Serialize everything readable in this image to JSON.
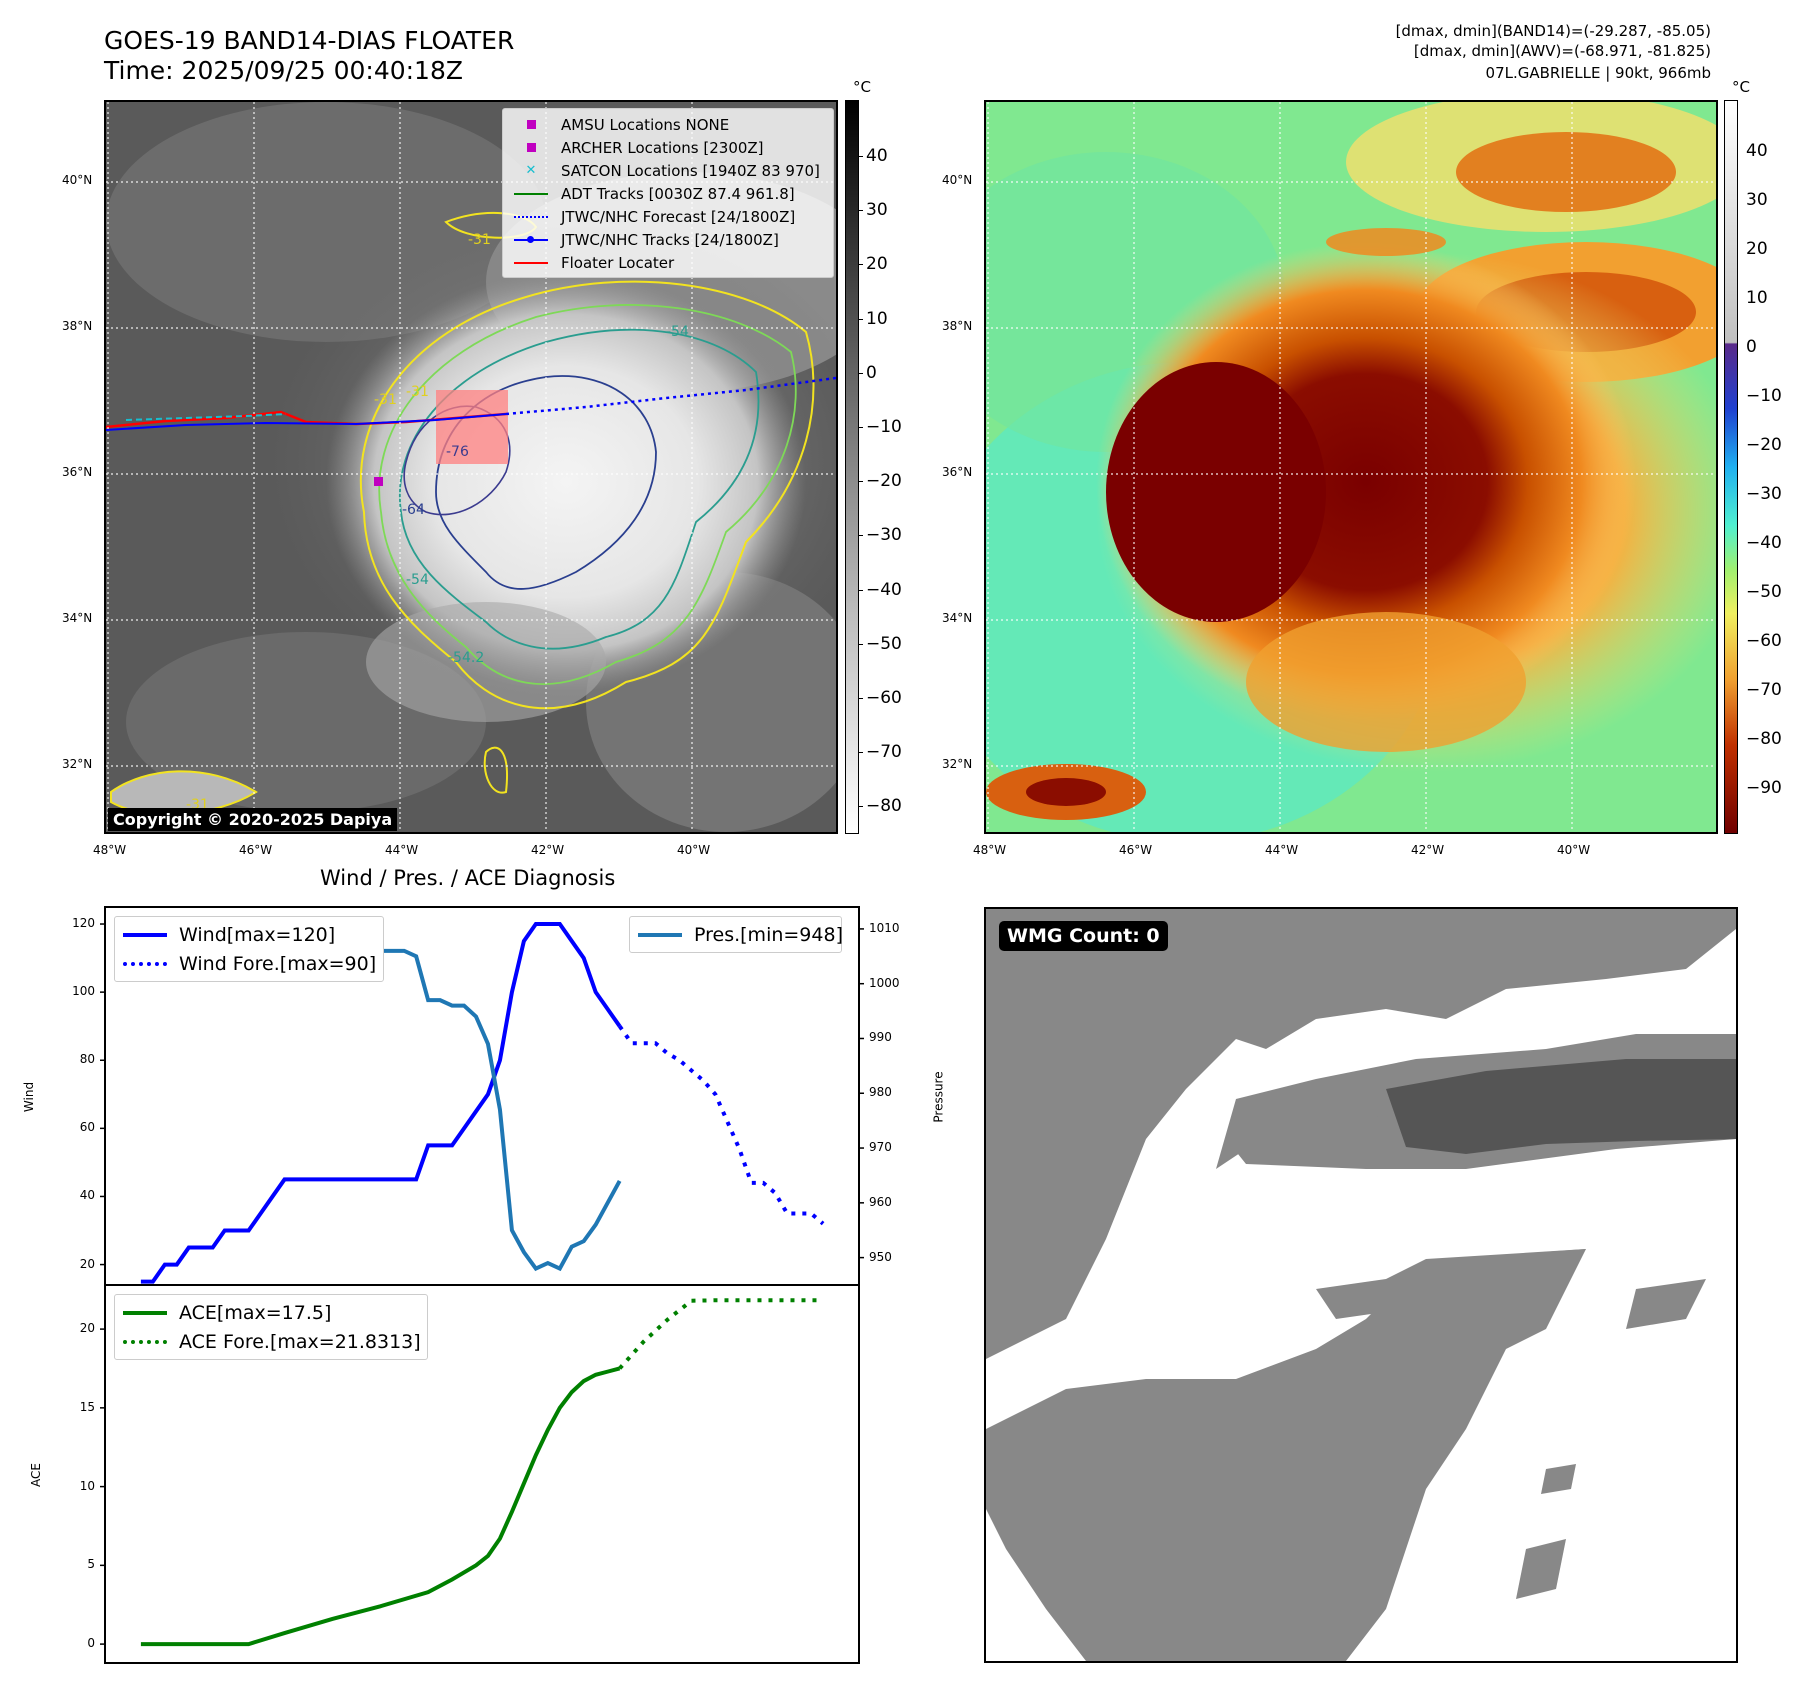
{
  "header": {
    "title_line1": "GOES-19 BAND14-DIAS FLOATER",
    "title_line2": "Time: 2025/09/25 00:40:18Z",
    "info_line1": "[dmax, dmin](BAND14)=(-29.287, -85.05)",
    "info_line2": "[dmax, dmin](AWV)=(-68.971, -81.825)",
    "info_line3": "07L.GABRIELLE | 90kt, 966mb"
  },
  "map_left": {
    "lat_labels": [
      "40°N",
      "38°N",
      "36°N",
      "34°N",
      "32°N"
    ],
    "lon_labels": [
      "48°W",
      "46°W",
      "44°W",
      "42°W",
      "40°W"
    ],
    "colorbar_unit": "°C",
    "colorbar_ticks": [
      "40",
      "30",
      "20",
      "10",
      "0",
      "−10",
      "−20",
      "−30",
      "−40",
      "−50",
      "−60",
      "−70",
      "−80"
    ],
    "contour_labels": [
      "-31",
      "-31",
      "-54",
      "-76",
      "-64",
      "-54",
      "-31",
      "-54.2",
      "-31"
    ],
    "legend": [
      {
        "label": "AMSU Locations NONE",
        "key": "square",
        "color": "#c000c0"
      },
      {
        "label": "ARCHER Locations [2300Z]",
        "key": "square",
        "color": "#c000c0"
      },
      {
        "label": "SATCON Locations [1940Z 83 970]",
        "key": "cross",
        "color": "#17becf"
      },
      {
        "label": "ADT Tracks [0030Z 87.4 961.8]",
        "key": "line",
        "color": "#008000"
      },
      {
        "label": "JTWC/NHC Forecast [24/1800Z]",
        "key": "dotted",
        "color": "#0000ff"
      },
      {
        "label": "JTWC/NHC Tracks [24/1800Z]",
        "key": "line-dot",
        "color": "#0000ff"
      },
      {
        "label": "Floater Locater",
        "key": "line",
        "color": "#ff0000"
      }
    ],
    "copyright": "Copyright © 2020-2025 Dapiya"
  },
  "map_right": {
    "lat_labels": [
      "40°N",
      "38°N",
      "36°N",
      "34°N",
      "32°N"
    ],
    "lon_labels": [
      "48°W",
      "46°W",
      "44°W",
      "42°W",
      "40°W"
    ],
    "colorbar_unit": "°C",
    "colorbar_ticks": [
      "40",
      "30",
      "20",
      "10",
      "0",
      "−10",
      "−20",
      "−30",
      "−40",
      "−50",
      "−60",
      "−70",
      "−80",
      "−90"
    ]
  },
  "diagnosis": {
    "title": "Wind / Pres. / ACE Diagnosis",
    "wind_ylabel": "Wind",
    "pres_ylabel": "Pressure",
    "ace_ylabel": "ACE",
    "wind_ticks": [
      "120",
      "100",
      "80",
      "60",
      "40",
      "20"
    ],
    "pres_ticks": [
      "1010",
      "1000",
      "990",
      "980",
      "970",
      "960",
      "950"
    ],
    "ace_ticks": [
      "20",
      "15",
      "10",
      "5",
      "0"
    ],
    "legend_wind": "Wind[max=120]",
    "legend_wind_fore": "Wind Fore.[max=90]",
    "legend_pres": "Pres.[min=948]",
    "legend_ace": "ACE[max=17.5]",
    "legend_ace_fore": "ACE Fore.[max=21.8313]",
    "colors": {
      "wind": "#0000ff",
      "pres": "#1f77b4",
      "ace": "#008000"
    }
  },
  "wmg": {
    "label": "WMG Count: 0"
  },
  "chart_data": [
    {
      "type": "line",
      "title": "Wind / Pres. / ACE Diagnosis",
      "ylabel": "Wind",
      "ylim": [
        14,
        125
      ],
      "xlim": [
        -3,
        60
      ],
      "series": [
        {
          "name": "Wind[max=120]",
          "style": "solid",
          "x": [
            0,
            1,
            2,
            3,
            4,
            5,
            6,
            7,
            8,
            9,
            10,
            11,
            12,
            13,
            14,
            15,
            16,
            17,
            18,
            19,
            20,
            21,
            22,
            23,
            24,
            25,
            26,
            27,
            28,
            29,
            30,
            31,
            32,
            33,
            34,
            35,
            36,
            37,
            38,
            39,
            40
          ],
          "values": [
            15,
            15,
            20,
            20,
            25,
            25,
            25,
            30,
            30,
            30,
            35,
            40,
            45,
            45,
            45,
            45,
            45,
            45,
            45,
            45,
            45,
            45,
            45,
            45,
            55,
            55,
            55,
            60,
            65,
            70,
            80,
            100,
            115,
            120,
            120,
            120,
            115,
            110,
            100,
            95,
            90
          ]
        },
        {
          "name": "Wind Fore.[max=90]",
          "style": "dotted",
          "x": [
            40,
            41,
            42,
            43,
            44,
            45,
            46,
            47,
            48,
            49,
            50,
            51,
            52,
            53,
            54,
            55,
            56,
            57
          ],
          "values": [
            90,
            85,
            85,
            85,
            82,
            80,
            77,
            74,
            70,
            62,
            54,
            44,
            44,
            41,
            35,
            35,
            35,
            32
          ]
        }
      ]
    },
    {
      "type": "line",
      "ylabel": "Pressure",
      "ylim": [
        945,
        1014
      ],
      "xlim": [
        -3,
        60
      ],
      "series": [
        {
          "name": "Pres.[min=948]",
          "style": "solid",
          "x": [
            0,
            1,
            2,
            3,
            4,
            5,
            6,
            7,
            8,
            9,
            10,
            11,
            12,
            13,
            14,
            15,
            16,
            17,
            18,
            19,
            20,
            21,
            22,
            23,
            24,
            25,
            26,
            27,
            28,
            29,
            30,
            31,
            32,
            33,
            34,
            35,
            36,
            37,
            38,
            39,
            40
          ],
          "values": [
            1012,
            1012,
            1011,
            1011,
            1010,
            1009,
            1008,
            1008,
            1007,
            1007,
            1006,
            1006,
            1006,
            1006,
            1006,
            1006,
            1006,
            1006,
            1006,
            1006,
            1006,
            1006,
            1006,
            1005,
            997,
            997,
            996,
            996,
            994,
            989,
            977,
            955,
            951,
            948,
            949,
            948,
            952,
            953,
            956,
            960,
            964
          ]
        }
      ]
    },
    {
      "type": "line",
      "ylabel": "ACE",
      "ylim": [
        -1.2,
        22.8
      ],
      "xlim": [
        -3,
        60
      ],
      "series": [
        {
          "name": "ACE[max=17.5]",
          "style": "solid",
          "x": [
            0,
            9,
            12,
            16,
            20,
            24,
            26,
            28,
            29,
            30,
            31,
            32,
            33,
            34,
            35,
            36,
            37,
            38,
            39,
            40
          ],
          "values": [
            0,
            0,
            0.7,
            1.6,
            2.4,
            3.3,
            4.1,
            5.0,
            5.6,
            6.7,
            8.4,
            10.2,
            12.0,
            13.6,
            15.0,
            16.0,
            16.7,
            17.1,
            17.3,
            17.5
          ]
        },
        {
          "name": "ACE Fore.[max=21.8313]",
          "style": "dotted",
          "x": [
            40,
            42,
            44,
            46,
            48,
            50,
            52,
            54,
            56,
            57
          ],
          "values": [
            17.5,
            19.2,
            20.6,
            21.8,
            21.8313,
            21.8313,
            21.8313,
            21.8313,
            21.8313,
            21.8313
          ]
        }
      ]
    }
  ]
}
